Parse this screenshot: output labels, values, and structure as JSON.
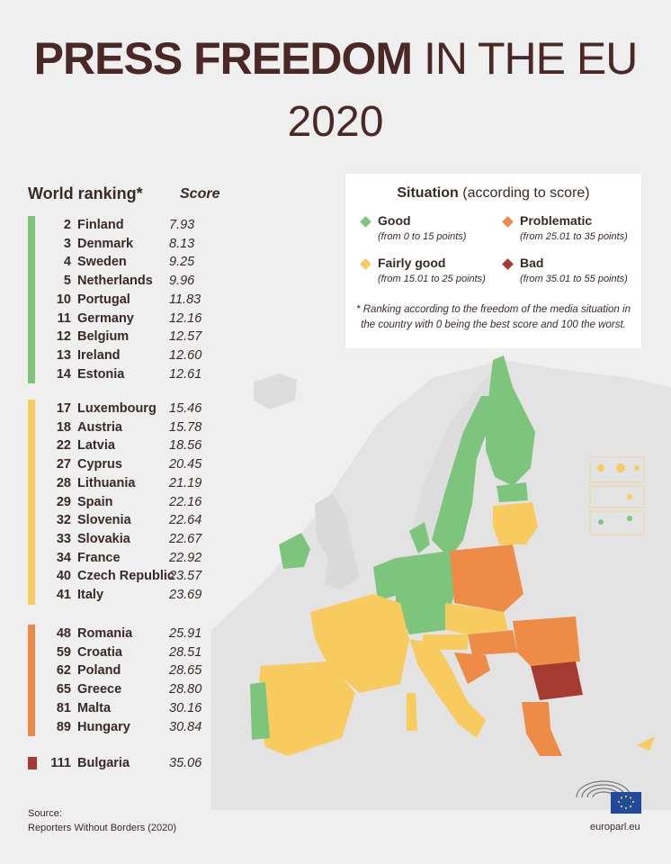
{
  "title": {
    "bold": "PRESS FREEDOM",
    "light": "IN THE EU",
    "year": "2020"
  },
  "table": {
    "rank_header": "World ranking*",
    "score_header": "Score"
  },
  "groups": [
    {
      "color": "#7dc47c",
      "rows": [
        {
          "rank": "2",
          "country": "Finland",
          "score": "7.93"
        },
        {
          "rank": "3",
          "country": "Denmark",
          "score": "8.13"
        },
        {
          "rank": "4",
          "country": "Sweden",
          "score": "9.25"
        },
        {
          "rank": "5",
          "country": "Netherlands",
          "score": "9.96"
        },
        {
          "rank": "10",
          "country": "Portugal",
          "score": "11.83"
        },
        {
          "rank": "11",
          "country": "Germany",
          "score": "12.16"
        },
        {
          "rank": "12",
          "country": "Belgium",
          "score": "12.57"
        },
        {
          "rank": "13",
          "country": "Ireland",
          "score": "12.60"
        },
        {
          "rank": "14",
          "country": "Estonia",
          "score": "12.61"
        }
      ]
    },
    {
      "color": "#f7cb5e",
      "rows": [
        {
          "rank": "17",
          "country": "Luxembourg",
          "score": "15.46"
        },
        {
          "rank": "18",
          "country": "Austria",
          "score": "15.78"
        },
        {
          "rank": "22",
          "country": "Latvia",
          "score": "18.56"
        },
        {
          "rank": "27",
          "country": "Cyprus",
          "score": "20.45"
        },
        {
          "rank": "28",
          "country": "Lithuania",
          "score": "21.19"
        },
        {
          "rank": "29",
          "country": "Spain",
          "score": "22.16"
        },
        {
          "rank": "32",
          "country": "Slovenia",
          "score": "22.64"
        },
        {
          "rank": "33",
          "country": "Slovakia",
          "score": "22.67"
        },
        {
          "rank": "34",
          "country": "France",
          "score": "22.92"
        },
        {
          "rank": "40",
          "country": "Czech Republic",
          "score": "23.57"
        },
        {
          "rank": "41",
          "country": "Italy",
          "score": "23.69"
        }
      ]
    },
    {
      "color": "#ee8c47",
      "rows": [
        {
          "rank": "48",
          "country": "Romania",
          "score": "25.91"
        },
        {
          "rank": "59",
          "country": "Croatia",
          "score": "28.51"
        },
        {
          "rank": "62",
          "country": "Poland",
          "score": "28.65"
        },
        {
          "rank": "65",
          "country": "Greece",
          "score": "28.80"
        },
        {
          "rank": "81",
          "country": "Malta",
          "score": "30.16"
        },
        {
          "rank": "89",
          "country": "Hungary",
          "score": "30.84"
        }
      ]
    },
    {
      "color": "#a63b32",
      "rows": [
        {
          "rank": "111",
          "country": "Bulgaria",
          "score": "35.06"
        }
      ]
    }
  ],
  "legend": {
    "title_bold": "Situation",
    "title_rest": " (according to score)",
    "items": [
      {
        "name": "Good",
        "range": "(from 0 to 15 points)",
        "color": "#7dc47c"
      },
      {
        "name": "Problematic",
        "range": "(from 25.01 to 35 points)",
        "color": "#ee8c47"
      },
      {
        "name": "Fairly good",
        "range": "(from 15.01 to 25 points)",
        "color": "#f7cb5e"
      },
      {
        "name": "Bad",
        "range": "(from 35.01 to 55 points)",
        "color": "#a63b32"
      }
    ],
    "note": "* Ranking according to the freedom of the media situation in the country with 0 being the best score and 100 the worst."
  },
  "source": {
    "label": "Source:",
    "text": "Reporters Without Borders (2020)"
  },
  "website": "europarl.eu",
  "chart_data": {
    "type": "table",
    "title": "PRESS FREEDOM IN THE EU 2020",
    "columns": [
      "World ranking*",
      "Score"
    ],
    "categories": [
      "Finland",
      "Denmark",
      "Sweden",
      "Netherlands",
      "Portugal",
      "Germany",
      "Belgium",
      "Ireland",
      "Estonia",
      "Luxembourg",
      "Austria",
      "Latvia",
      "Cyprus",
      "Lithuania",
      "Spain",
      "Slovenia",
      "Slovakia",
      "France",
      "Czech Republic",
      "Italy",
      "Romania",
      "Croatia",
      "Poland",
      "Greece",
      "Malta",
      "Hungary",
      "Bulgaria"
    ],
    "series": [
      {
        "name": "World ranking*",
        "values": [
          2,
          3,
          4,
          5,
          10,
          11,
          12,
          13,
          14,
          17,
          18,
          22,
          27,
          28,
          29,
          32,
          33,
          34,
          40,
          41,
          48,
          59,
          62,
          65,
          81,
          89,
          111
        ]
      },
      {
        "name": "Score",
        "values": [
          7.93,
          8.13,
          9.25,
          9.96,
          11.83,
          12.16,
          12.57,
          12.6,
          12.61,
          15.46,
          15.78,
          18.56,
          20.45,
          21.19,
          22.16,
          22.64,
          22.67,
          22.92,
          23.57,
          23.69,
          25.91,
          28.51,
          28.65,
          28.8,
          30.16,
          30.84,
          35.06
        ]
      }
    ],
    "legend": [
      {
        "label": "Good",
        "range": "(from 0 to 15 points)"
      },
      {
        "label": "Fairly good",
        "range": "(from 15.01 to 25 points)"
      },
      {
        "label": "Problematic",
        "range": "(from 25.01 to 35 points)"
      },
      {
        "label": "Bad",
        "range": "(from 35.01 to 55 points)"
      }
    ]
  }
}
